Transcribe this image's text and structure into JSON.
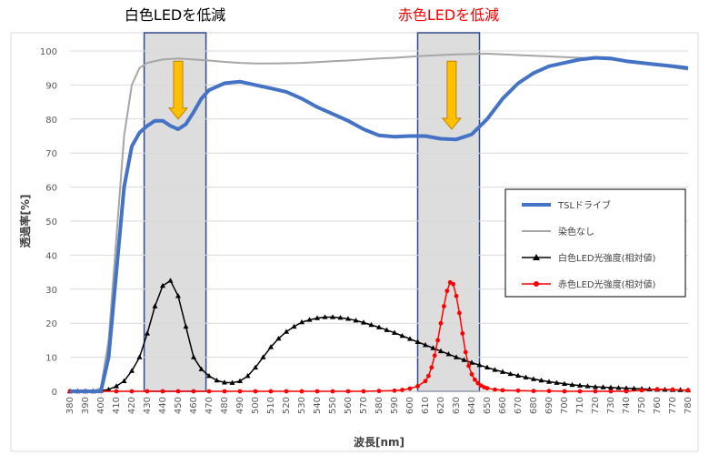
{
  "chart_data": {
    "type": "line",
    "xlabel": "波長[nm]",
    "ylabel": "透過率[%]",
    "xlim": [
      380,
      780
    ],
    "ylim": [
      0,
      100
    ],
    "x_ticks": [
      "380",
      "390",
      "400",
      "410",
      "420",
      "430",
      "440",
      "450",
      "460",
      "470",
      "480",
      "490",
      "500",
      "510",
      "520",
      "530",
      "540",
      "550",
      "560",
      "570",
      "580",
      "590",
      "600",
      "610",
      "620",
      "630",
      "640",
      "650",
      "660",
      "670",
      "680",
      "690",
      "700",
      "710",
      "720",
      "730",
      "740",
      "750",
      "760",
      "770",
      "780"
    ],
    "y_ticks": [
      "0",
      "10",
      "20",
      "30",
      "40",
      "50",
      "60",
      "70",
      "80",
      "90",
      "100"
    ],
    "gridlines": "horizontal",
    "legend_position": "right",
    "annotations": [
      {
        "text": "白色LEDを低減",
        "color": "#000000",
        "x_range": [
          428,
          468
        ]
      },
      {
        "text": "赤色LEDを低減",
        "color": "#ff0000",
        "x_range": [
          605,
          645
        ]
      }
    ],
    "highlight_bands": [
      [
        428,
        468
      ],
      [
        605,
        645
      ]
    ],
    "arrows": [
      {
        "x": 450,
        "y_from": 97,
        "y_to": 80
      },
      {
        "x": 627,
        "y_from": 97,
        "y_to": 77
      }
    ],
    "series": [
      {
        "name": "TSLドライブ",
        "color": "#4472c4",
        "marker": "none",
        "x": [
          380,
          395,
          400,
          405,
          410,
          415,
          420,
          425,
          430,
          435,
          440,
          445,
          450,
          455,
          460,
          465,
          470,
          480,
          490,
          500,
          510,
          520,
          530,
          540,
          550,
          560,
          570,
          580,
          590,
          600,
          610,
          620,
          630,
          640,
          650,
          660,
          670,
          680,
          690,
          700,
          710,
          720,
          730,
          740,
          750,
          760,
          770,
          780
        ],
        "y": [
          0,
          0,
          0,
          10,
          35,
          60,
          72,
          76,
          78,
          79.5,
          79.5,
          78,
          77,
          78.5,
          82,
          86,
          88.5,
          90.5,
          91,
          90,
          89,
          88,
          86,
          83.5,
          81.5,
          79.5,
          77,
          75.2,
          74.8,
          75,
          75,
          74.2,
          74,
          75.5,
          80,
          86,
          90.5,
          93.5,
          95.5,
          96.5,
          97.5,
          98,
          97.8,
          97,
          96.5,
          96,
          95.5,
          95
        ]
      },
      {
        "name": "染色なし",
        "color": "#a6a6a6",
        "marker": "none",
        "x": [
          380,
          395,
          400,
          405,
          410,
          415,
          420,
          425,
          430,
          435,
          440,
          450,
          460,
          470,
          480,
          490,
          500,
          510,
          520,
          530,
          540,
          550,
          560,
          570,
          580,
          590,
          600,
          610,
          620,
          630,
          640,
          650,
          660,
          670,
          680,
          690,
          700,
          710,
          720,
          730,
          740,
          750,
          760,
          770,
          780
        ],
        "y": [
          0,
          0,
          1,
          15,
          45,
          75,
          90,
          95,
          96.5,
          97,
          97.5,
          97.8,
          97.5,
          97.2,
          96.8,
          96.5,
          96.3,
          96.3,
          96.4,
          96.5,
          96.7,
          97,
          97.2,
          97.5,
          97.8,
          98,
          98.3,
          98.6,
          98.8,
          99,
          99.1,
          99.2,
          99,
          98.8,
          98.6,
          98.4,
          98.2,
          98,
          97.8,
          97.5,
          97,
          96.5,
          96,
          95.2,
          94.5
        ]
      },
      {
        "name": "白色LED光強度(相対値)",
        "color": "#000000",
        "marker": "triangle",
        "x": [
          380,
          385,
          390,
          395,
          400,
          405,
          410,
          415,
          420,
          425,
          430,
          435,
          440,
          445,
          450,
          455,
          460,
          465,
          470,
          475,
          480,
          485,
          490,
          495,
          500,
          505,
          510,
          515,
          520,
          525,
          530,
          535,
          540,
          545,
          550,
          555,
          560,
          565,
          570,
          575,
          580,
          585,
          590,
          595,
          600,
          605,
          610,
          615,
          620,
          625,
          630,
          635,
          640,
          645,
          650,
          655,
          660,
          665,
          670,
          675,
          680,
          685,
          690,
          695,
          700,
          705,
          710,
          715,
          720,
          725,
          730,
          735,
          740,
          745,
          750,
          755,
          760,
          765,
          770,
          775,
          780
        ],
        "y": [
          0,
          0,
          0,
          0,
          0.2,
          0.5,
          1.5,
          3,
          6,
          10,
          17,
          25,
          31,
          32.5,
          28,
          19,
          10,
          6.5,
          4.5,
          3.2,
          2.6,
          2.5,
          3,
          4.5,
          7,
          10,
          13,
          15.5,
          17.5,
          19,
          20.3,
          21,
          21.5,
          21.8,
          21.8,
          21.6,
          21.3,
          20.8,
          20.2,
          19.5,
          18.8,
          18,
          17.2,
          16.3,
          15.4,
          14.5,
          13.6,
          12.7,
          11.8,
          10.9,
          10,
          9.2,
          8.4,
          7.7,
          7,
          6.3,
          5.7,
          5.1,
          4.6,
          4.1,
          3.6,
          3.2,
          2.8,
          2.5,
          2.2,
          1.9,
          1.7,
          1.5,
          1.3,
          1.2,
          1.1,
          1,
          0.9,
          0.8,
          0.7,
          0.6,
          0.5,
          0.5,
          0.4,
          0.4,
          0.3
        ]
      },
      {
        "name": "赤色LED光強度(相対値)",
        "color": "#ff0000",
        "marker": "circle",
        "x": [
          380,
          390,
          400,
          410,
          420,
          430,
          440,
          450,
          460,
          470,
          480,
          490,
          500,
          510,
          520,
          530,
          540,
          550,
          560,
          570,
          580,
          590,
          595,
          600,
          605,
          610,
          612,
          614,
          616,
          618,
          620,
          622,
          624,
          626,
          628,
          630,
          632,
          634,
          636,
          638,
          640,
          642,
          644,
          646,
          648,
          650,
          655,
          660,
          670,
          680,
          690,
          700,
          710,
          720,
          730,
          740,
          750,
          760,
          770,
          780
        ],
        "y": [
          0,
          0,
          0,
          0,
          0,
          0,
          0,
          0,
          0,
          0,
          0,
          0,
          0,
          0,
          0,
          0,
          0,
          0,
          0,
          0,
          0.1,
          0.2,
          0.4,
          0.8,
          1.5,
          3,
          4.5,
          7,
          10.5,
          15,
          20,
          25,
          29.5,
          32,
          31.5,
          28,
          23,
          17,
          11.5,
          7.5,
          5,
          3.4,
          2.4,
          1.7,
          1.2,
          0.9,
          0.5,
          0.3,
          0.2,
          0.1,
          0.1,
          0,
          0,
          0,
          0,
          0,
          0.3,
          0.6,
          0.5,
          0.3
        ]
      }
    ]
  }
}
